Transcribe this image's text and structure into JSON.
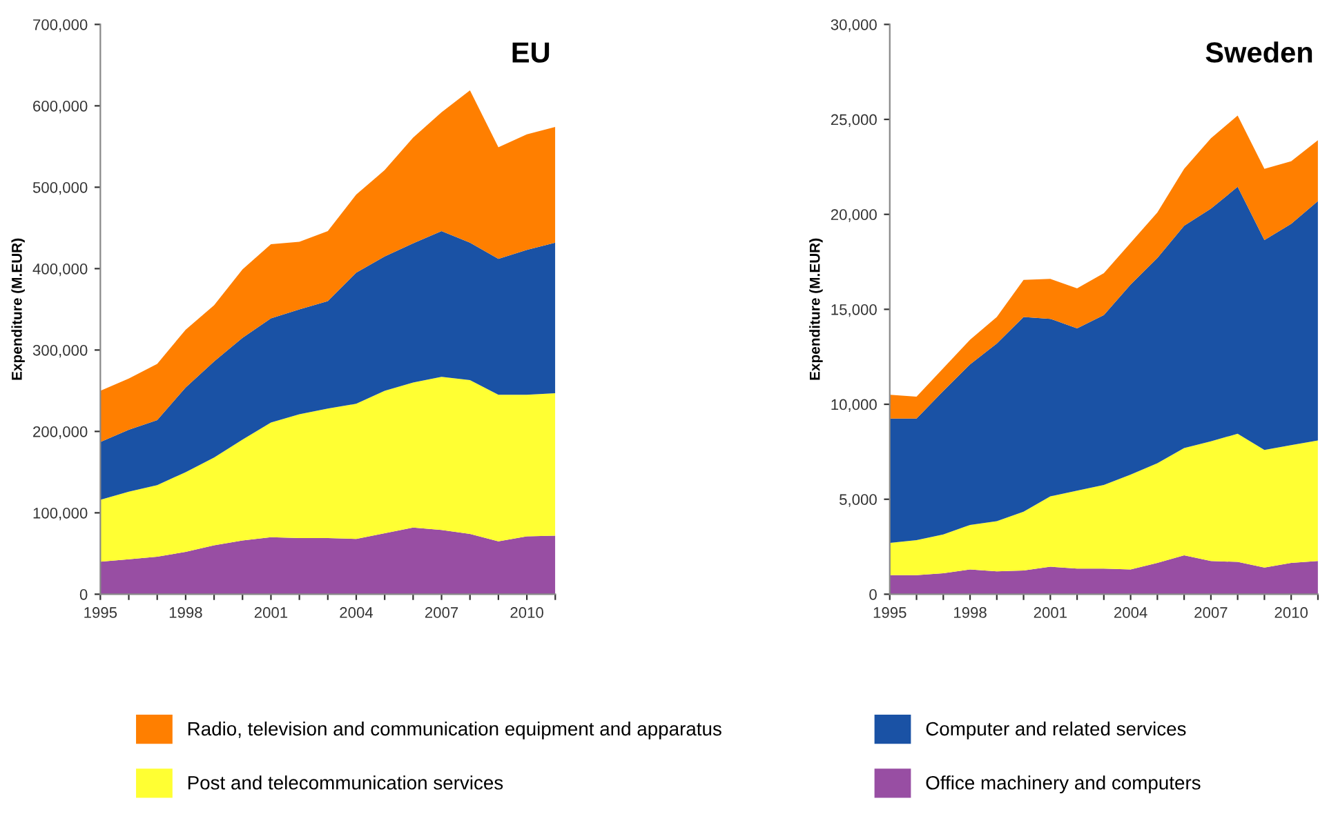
{
  "chart_data": [
    {
      "type": "area",
      "stacked": true,
      "title": "EU",
      "ylabel": "Expenditure (M.EUR)",
      "x": [
        1995,
        1996,
        1997,
        1998,
        1999,
        2000,
        2001,
        2002,
        2003,
        2004,
        2005,
        2006,
        2007,
        2008,
        2009,
        2010,
        2011
      ],
      "xlim": [
        1995,
        2011
      ],
      "xticks": [
        1995,
        {
          "value": 1996,
          "label": null
        },
        {
          "value": 1997,
          "label": null
        },
        1998,
        {
          "value": 1999,
          "label": null
        },
        {
          "value": 2000,
          "label": null
        },
        2001,
        {
          "value": 2002,
          "label": null
        },
        {
          "value": 2003,
          "label": null
        },
        2004,
        {
          "value": 2005,
          "label": null
        },
        {
          "value": 2006,
          "label": null
        },
        2007,
        {
          "value": 2008,
          "label": null
        },
        {
          "value": 2009,
          "label": null
        },
        2010,
        {
          "value": 2011,
          "label": null
        }
      ],
      "ylim": [
        0,
        700000
      ],
      "yticks": [
        {
          "value": 0,
          "label": "0"
        },
        {
          "value": 100000,
          "label": "100,000"
        },
        {
          "value": 200000,
          "label": "200,000"
        },
        {
          "value": 300000,
          "label": "300,000"
        },
        {
          "value": 400000,
          "label": "400,000"
        },
        {
          "value": 500000,
          "label": "500,000"
        },
        {
          "value": 600000,
          "label": "600,000"
        },
        {
          "value": 700000,
          "label": "700,000"
        }
      ],
      "grid": false,
      "legend": "bottom",
      "series": [
        {
          "name": "Office machinery and computers",
          "color": "#984ea3",
          "values": [
            40000,
            43000,
            46000,
            52000,
            60000,
            66000,
            70000,
            69000,
            69000,
            68000,
            75000,
            82000,
            79000,
            74000,
            65000,
            71000,
            72000
          ]
        },
        {
          "name": "Post and telecommunication services",
          "color": "#ffff33",
          "values": [
            76000,
            83000,
            88000,
            98000,
            108000,
            124000,
            141000,
            152000,
            159000,
            166000,
            175000,
            178000,
            188000,
            189000,
            180000,
            174000,
            175000
          ]
        },
        {
          "name": "Computer and related services",
          "color": "#1a52a5",
          "values": [
            71000,
            76000,
            80000,
            104000,
            118000,
            125000,
            128000,
            129000,
            132000,
            161000,
            165000,
            171000,
            179000,
            169000,
            167000,
            178000,
            185000
          ]
        },
        {
          "name": "Radio, television and communication equipment and apparatus",
          "color": "#ff7f00",
          "values": [
            63000,
            63000,
            69000,
            71000,
            69000,
            84000,
            91000,
            83000,
            86000,
            96000,
            106000,
            130000,
            146000,
            187000,
            137000,
            142000,
            142000
          ]
        }
      ]
    },
    {
      "type": "area",
      "stacked": true,
      "title": "Sweden",
      "ylabel": "Expenditure (M.EUR)",
      "x": [
        1995,
        1996,
        1997,
        1998,
        1999,
        2000,
        2001,
        2002,
        2003,
        2004,
        2005,
        2006,
        2007,
        2008,
        2009,
        2010,
        2011
      ],
      "xlim": [
        1995,
        2011
      ],
      "xticks": [
        1995,
        {
          "value": 1996,
          "label": null
        },
        {
          "value": 1997,
          "label": null
        },
        1998,
        {
          "value": 1999,
          "label": null
        },
        {
          "value": 2000,
          "label": null
        },
        2001,
        {
          "value": 2002,
          "label": null
        },
        {
          "value": 2003,
          "label": null
        },
        2004,
        {
          "value": 2005,
          "label": null
        },
        {
          "value": 2006,
          "label": null
        },
        2007,
        {
          "value": 2008,
          "label": null
        },
        {
          "value": 2009,
          "label": null
        },
        2010,
        {
          "value": 2011,
          "label": null
        }
      ],
      "ylim": [
        0,
        30000
      ],
      "yticks": [
        {
          "value": 0,
          "label": "0"
        },
        {
          "value": 5000,
          "label": "5,000"
        },
        {
          "value": 10000,
          "label": "10,000"
        },
        {
          "value": 15000,
          "label": "15,000"
        },
        {
          "value": 20000,
          "label": "20,000"
        },
        {
          "value": 25000,
          "label": "25,000"
        },
        {
          "value": 30000,
          "label": "30,000"
        }
      ],
      "grid": false,
      "series": [
        {
          "color": "#984ea3",
          "values": [
            1000,
            1000,
            1100,
            1300,
            1200,
            1250,
            1450,
            1350,
            1350,
            1300,
            1650,
            2050,
            1750,
            1700,
            1400,
            1650,
            1750
          ]
        },
        {
          "color": "#ffff33",
          "values": [
            1700,
            1850,
            2050,
            2350,
            2650,
            3100,
            3700,
            4100,
            4400,
            5000,
            5250,
            5650,
            6300,
            6750,
            6200,
            6200,
            6350
          ]
        },
        {
          "color": "#1a52a5",
          "values": [
            6550,
            6400,
            7550,
            8450,
            9350,
            10250,
            9350,
            8550,
            8950,
            10000,
            10800,
            11700,
            12250,
            13000,
            11050,
            11650,
            12600
          ]
        },
        {
          "color": "#ff7f00",
          "values": [
            1250,
            1150,
            1200,
            1300,
            1400,
            1950,
            2100,
            2100,
            2200,
            2200,
            2400,
            3000,
            3700,
            3750,
            3750,
            3300,
            3200
          ]
        }
      ]
    }
  ]
}
